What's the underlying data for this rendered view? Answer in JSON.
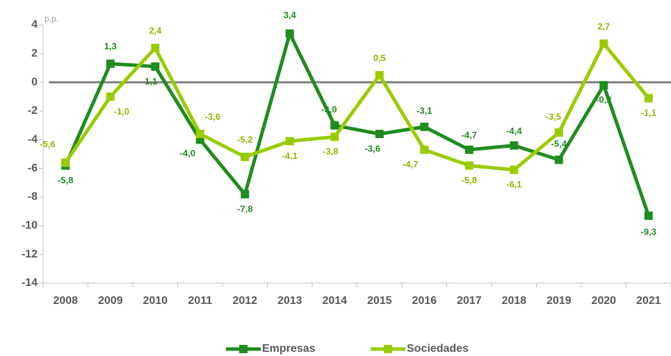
{
  "chart_data": {
    "type": "line",
    "y_unit": "p.p.",
    "categories": [
      "2008",
      "2009",
      "2010",
      "2011",
      "2012",
      "2013",
      "2014",
      "2015",
      "2016",
      "2017",
      "2018",
      "2019",
      "2020",
      "2021"
    ],
    "series": [
      {
        "name": "Empresas",
        "color": "#1e8c1e",
        "values": [
          -5.8,
          1.3,
          1.1,
          -4.0,
          -7.8,
          3.4,
          -3.0,
          -3.6,
          -3.1,
          -4.7,
          -4.4,
          -5.4,
          -0.2,
          -9.3
        ],
        "value_labels": [
          "-5,8",
          "1,3",
          "1,1",
          "-4,0",
          "-7,8",
          "3,4",
          "-3,0",
          "-3,6",
          "-3,1",
          "-4,7",
          "-4,4",
          "-5,4",
          "-0,2",
          "-9,3"
        ]
      },
      {
        "name": "Sociedades",
        "color": "#99cc00",
        "values": [
          -5.6,
          -1.0,
          2.4,
          -3.6,
          -5.2,
          -4.1,
          -3.8,
          0.5,
          -4.7,
          -5.8,
          -6.1,
          -3.5,
          2.7,
          -1.1
        ],
        "value_labels": [
          "-5,6",
          "-1,0",
          "2,4",
          "-3,6",
          "-5,2",
          "-4,1",
          "-3,8",
          "0,5",
          "-4,7",
          "-5,8",
          "-6,1",
          "-3,5",
          "2,7",
          "-1,1"
        ]
      }
    ],
    "ylim": [
      -14,
      4
    ],
    "yticks": [
      -14,
      -12,
      -10,
      -8,
      -6,
      -4,
      -2,
      0,
      2,
      4
    ],
    "legend": "bottom"
  }
}
